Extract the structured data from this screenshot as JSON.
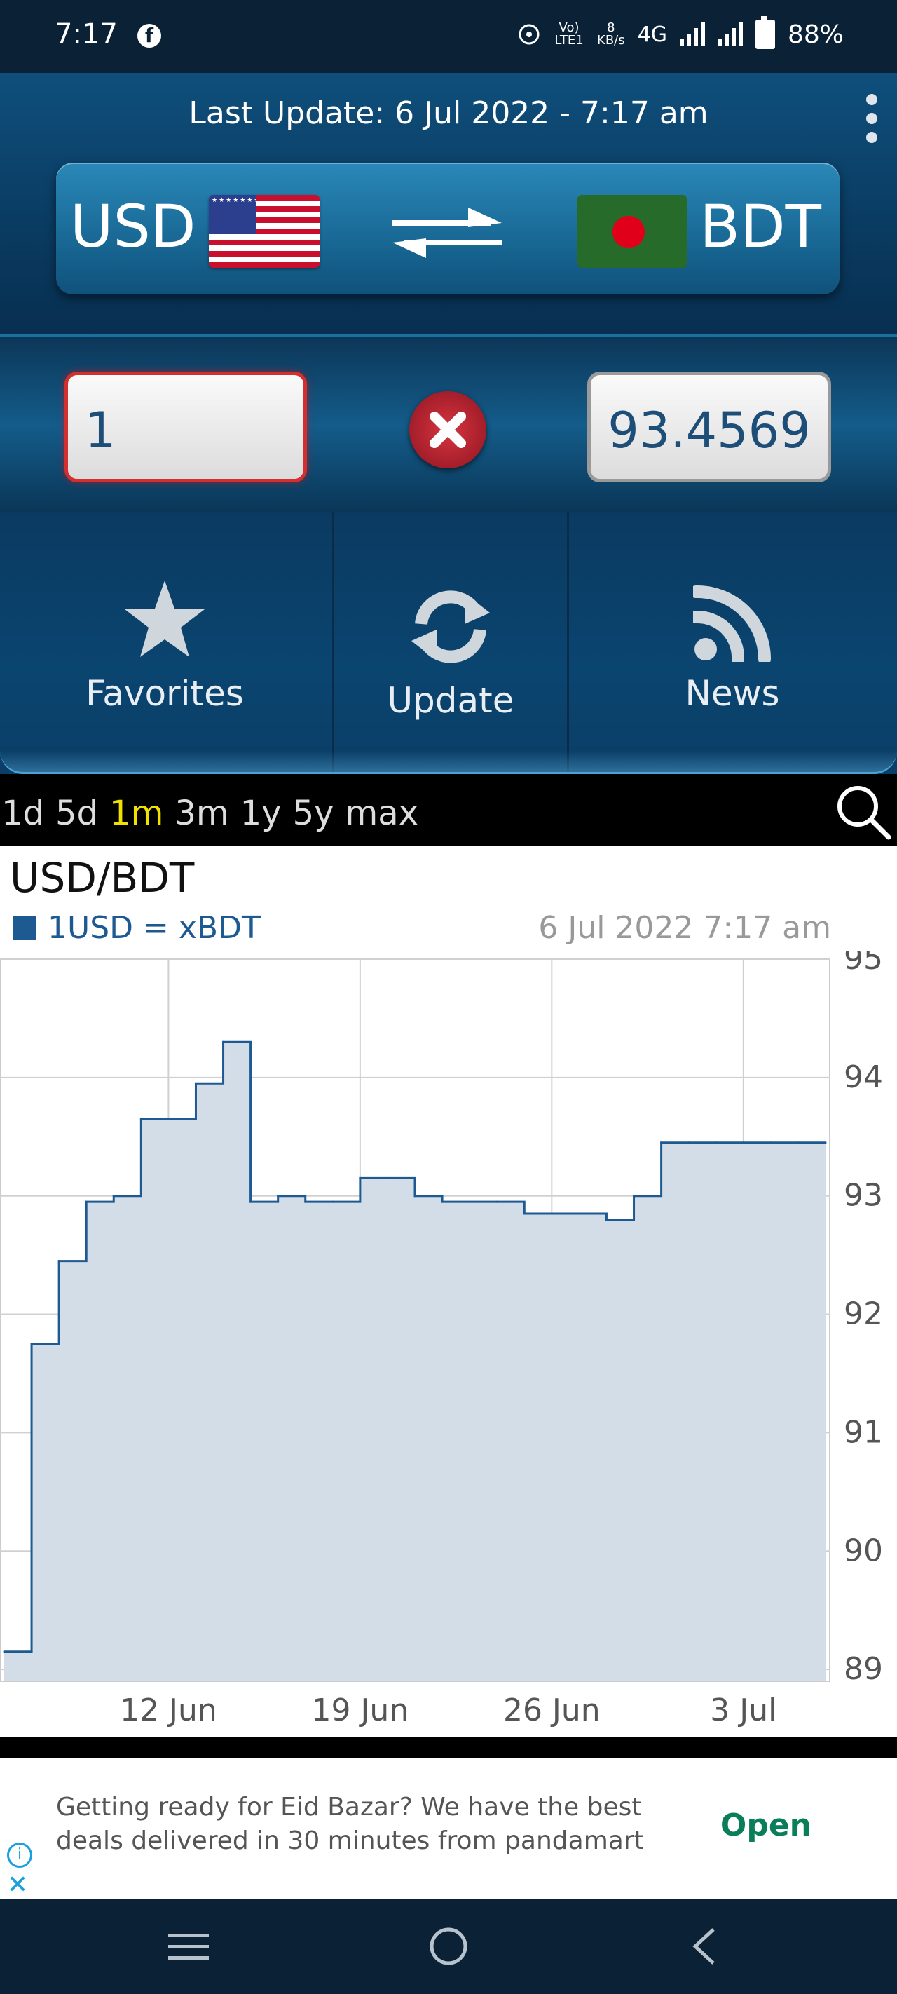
{
  "status_bar": {
    "time": "7:17",
    "network_speed_value": "8",
    "network_speed_unit": "KB/s",
    "volte_label": "Vo) LTE1",
    "network_type": "4G",
    "battery": "88%"
  },
  "header": {
    "last_update": "Last Update: 6 Jul 2022 - 7:17 am",
    "from_currency": "USD",
    "to_currency": "BDT"
  },
  "converter": {
    "input_value": "1",
    "result_value": "93.4569"
  },
  "actions": {
    "favorites_label": "Favorites",
    "update_label": "Update",
    "news_label": "News"
  },
  "ranges": [
    "1d",
    "5d",
    "1m",
    "3m",
    "1y",
    "5y",
    "max"
  ],
  "active_range": "1m",
  "chart": {
    "pair_title": "USD/BDT",
    "legend": "1USD = xBDT",
    "date": "6 Jul 2022 7:17 am"
  },
  "chart_data": {
    "type": "area",
    "title": "USD/BDT",
    "series": [
      {
        "name": "1USD = xBDT",
        "color": "#1e5a92",
        "x": [
          "6 Jun",
          "7 Jun",
          "8 Jun",
          "9 Jun",
          "10 Jun",
          "11 Jun",
          "12 Jun",
          "13 Jun",
          "14 Jun",
          "15 Jun",
          "16 Jun",
          "17 Jun",
          "18 Jun",
          "19 Jun",
          "20 Jun",
          "21 Jun",
          "22 Jun",
          "23 Jun",
          "24 Jun",
          "25 Jun",
          "26 Jun",
          "27 Jun",
          "28 Jun",
          "29 Jun",
          "30 Jun",
          "1 Jul",
          "2 Jul",
          "3 Jul",
          "4 Jul",
          "5 Jul",
          "6 Jul"
        ],
        "values": [
          89.15,
          91.75,
          92.45,
          92.95,
          93.0,
          93.65,
          93.65,
          93.95,
          94.3,
          92.95,
          93.0,
          92.95,
          92.95,
          93.15,
          93.15,
          93.0,
          92.95,
          92.95,
          92.95,
          92.85,
          92.85,
          92.85,
          92.8,
          93.0,
          93.45,
          93.45,
          93.45,
          93.45,
          93.45,
          93.45,
          93.45
        ]
      }
    ],
    "xticks": [
      "12 Jun",
      "19 Jun",
      "26 Jun",
      "3 Jul"
    ],
    "yticks": [
      89,
      90,
      91,
      92,
      93,
      94,
      95
    ],
    "ylim": [
      88.9,
      95.0
    ],
    "grid": true,
    "fill_color": "#d3dde8"
  },
  "ad": {
    "text": "Getting ready for Eid Bazar? We have the best deals delivered in 30 minutes from pandamart",
    "cta": "Open",
    "info_glyph": "i",
    "close_glyph": "✕"
  },
  "icons": {
    "facebook": "facebook-icon",
    "swap": "swap-arrows-icon",
    "clear": "clear-x-icon",
    "favorites": "star-icon",
    "update": "refresh-icon",
    "news": "rss-icon",
    "search": "search-icon",
    "menu": "more-vertical-icon"
  }
}
